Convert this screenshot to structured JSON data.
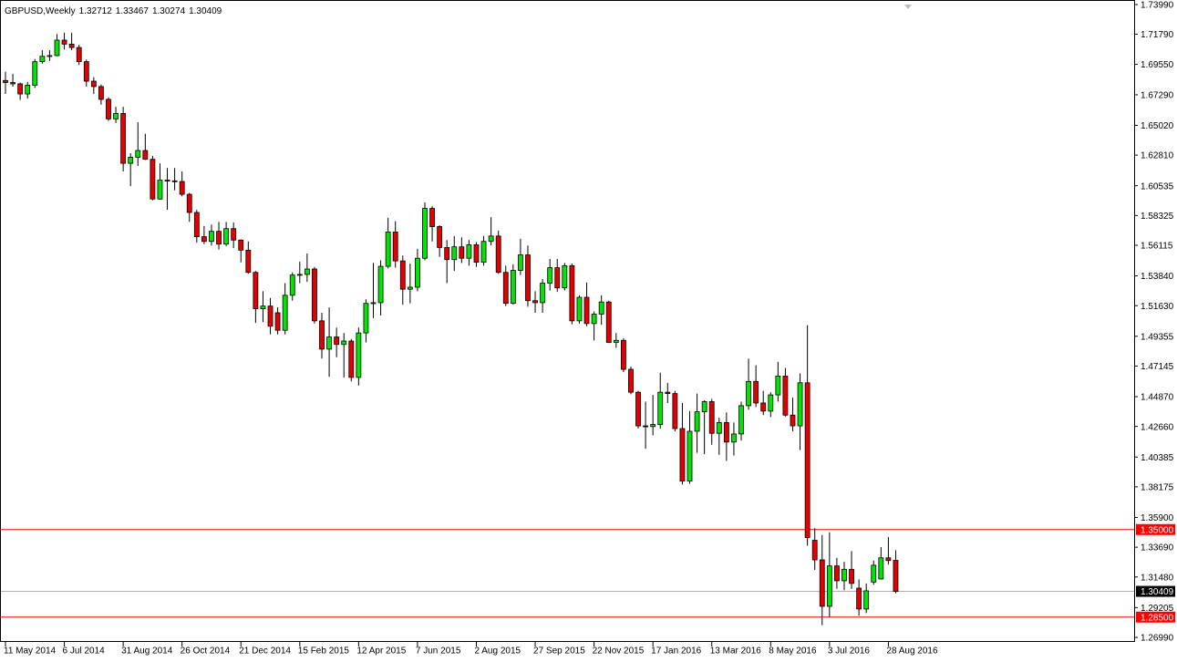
{
  "chart_data": {
    "type": "candlestick",
    "title": "GBPUSD,Weekly",
    "categories": [
      "11 May 2014",
      null,
      null,
      null,
      null,
      null,
      null,
      null,
      "6 Jul 2014",
      null,
      null,
      null,
      null,
      null,
      null,
      null,
      "31 Aug 2014",
      null,
      null,
      null,
      null,
      null,
      null,
      null,
      "26 Oct 2014",
      null,
      null,
      null,
      null,
      null,
      null,
      null,
      "21 Dec 2014",
      null,
      null,
      null,
      null,
      null,
      null,
      null,
      "15 Feb 2015",
      null,
      null,
      null,
      null,
      null,
      null,
      null,
      "12 Apr 2015",
      null,
      null,
      null,
      null,
      null,
      null,
      null,
      "7 Jun 2015",
      null,
      null,
      null,
      null,
      null,
      null,
      null,
      "2 Aug 2015",
      null,
      null,
      null,
      null,
      null,
      null,
      null,
      "27 Sep 2015",
      null,
      null,
      null,
      null,
      null,
      null,
      null,
      "22 Nov 2015",
      null,
      null,
      null,
      null,
      null,
      null,
      null,
      "17 Jan 2016",
      null,
      null,
      null,
      null,
      null,
      null,
      null,
      "13 Mar 2016",
      null,
      null,
      null,
      null,
      null,
      null,
      null,
      "8 May 2016",
      null,
      null,
      null,
      null,
      null,
      null,
      null,
      "3 Jul 2016",
      null,
      null,
      null,
      null,
      null,
      null,
      null,
      "28 Aug 2016",
      null
    ],
    "open": [
      1.6835,
      1.682,
      1.681,
      1.6735,
      1.68,
      1.6975,
      1.7015,
      1.702,
      1.7135,
      1.7105,
      1.708,
      1.6975,
      1.683,
      1.679,
      1.6695,
      1.655,
      1.659,
      1.622,
      1.6265,
      1.6315,
      1.625,
      1.5955,
      1.6095,
      1.609,
      1.6085,
      1.599,
      1.5855,
      1.5675,
      1.564,
      1.5715,
      1.562,
      1.5735,
      1.565,
      1.5575,
      1.541,
      1.514,
      1.516,
      1.511,
      1.498,
      1.524,
      1.539,
      1.5395,
      1.5435,
      1.505,
      1.484,
      1.493,
      1.4875,
      1.49,
      1.463,
      1.496,
      1.518,
      1.5185,
      1.5455,
      1.571,
      1.5495,
      1.5285,
      1.53,
      1.5515,
      1.5885,
      1.575,
      1.5595,
      1.5505,
      1.56,
      1.5515,
      1.5615,
      1.5485,
      1.564,
      1.568,
      1.541,
      1.518,
      1.5425,
      1.554,
      1.52,
      1.5185,
      1.533,
      1.5445,
      1.5295,
      1.546,
      1.505,
      1.5225,
      1.503,
      1.51,
      1.519,
      1.489,
      1.4905,
      1.469,
      1.452,
      1.427,
      1.4265,
      1.428,
      1.452,
      1.451,
      1.425,
      1.386,
      1.423,
      1.4375,
      1.445,
      1.4215,
      1.4295,
      1.415,
      1.421,
      1.442,
      1.46,
      1.444,
      1.438,
      1.45,
      1.464,
      1.435,
      1.427,
      1.459,
      1.342,
      1.3275,
      1.293,
      1.323,
      1.312,
      1.3205,
      1.3065,
      1.291,
      1.311,
      1.3133,
      1.329,
      1.32712
    ],
    "high": [
      1.69,
      1.6885,
      1.682,
      1.6825,
      1.6995,
      1.706,
      1.706,
      1.718,
      1.719,
      1.719,
      1.71,
      1.699,
      1.686,
      1.6805,
      1.671,
      1.664,
      1.664,
      1.6295,
      1.6525,
      1.644,
      1.6275,
      1.622,
      1.6185,
      1.6185,
      1.616,
      1.6,
      1.5875,
      1.5755,
      1.5765,
      1.5785,
      1.5785,
      1.578,
      1.5655,
      1.564,
      1.542,
      1.527,
      1.522,
      1.515,
      1.533,
      1.541,
      1.549,
      1.555,
      1.545,
      1.511,
      1.515,
      1.5,
      1.496,
      1.4915,
      1.5,
      1.521,
      1.548,
      1.55,
      1.5815,
      1.579,
      1.5535,
      1.5475,
      1.5585,
      1.593,
      1.59,
      1.576,
      1.565,
      1.568,
      1.567,
      1.565,
      1.5635,
      1.568,
      1.582,
      1.572,
      1.546,
      1.547,
      1.566,
      1.561,
      1.527,
      1.536,
      1.551,
      1.551,
      1.548,
      1.5475,
      1.524,
      1.5335,
      1.512,
      1.524,
      1.52,
      1.496,
      1.492,
      1.471,
      1.453,
      1.445,
      1.45,
      1.4665,
      1.459,
      1.453,
      1.444,
      1.438,
      1.451,
      1.446,
      1.447,
      1.433,
      1.437,
      1.4295,
      1.445,
      1.477,
      1.472,
      1.453,
      1.452,
      1.4745,
      1.47,
      1.448,
      1.466,
      1.5018,
      1.351,
      1.346,
      1.348,
      1.329,
      1.326,
      1.334,
      1.313,
      1.31,
      1.327,
      1.337,
      1.3445,
      1.33467
    ],
    "low": [
      1.6735,
      1.679,
      1.669,
      1.67,
      1.678,
      1.696,
      1.698,
      1.7015,
      1.7065,
      1.706,
      1.695,
      1.679,
      1.6735,
      1.6655,
      1.6535,
      1.652,
      1.616,
      1.605,
      1.62,
      1.6245,
      1.5945,
      1.595,
      1.5875,
      1.602,
      1.5975,
      1.5785,
      1.563,
      1.562,
      1.561,
      1.558,
      1.5605,
      1.559,
      1.5485,
      1.54,
      1.5035,
      1.504,
      1.495,
      1.495,
      1.495,
      1.52,
      1.533,
      1.534,
      1.503,
      1.477,
      1.4635,
      1.478,
      1.463,
      1.46,
      1.457,
      1.489,
      1.507,
      1.509,
      1.544,
      1.5445,
      1.517,
      1.518,
      1.527,
      1.55,
      1.564,
      1.5525,
      1.533,
      1.542,
      1.548,
      1.546,
      1.545,
      1.546,
      1.561,
      1.54,
      1.516,
      1.517,
      1.539,
      1.5155,
      1.511,
      1.511,
      1.5275,
      1.5265,
      1.5275,
      1.5025,
      1.503,
      1.501,
      1.4905,
      1.502,
      1.4885,
      1.485,
      1.467,
      1.4505,
      1.425,
      1.41,
      1.42,
      1.425,
      1.444,
      1.423,
      1.3835,
      1.384,
      1.407,
      1.406,
      1.413,
      1.4055,
      1.401,
      1.405,
      1.416,
      1.439,
      1.441,
      1.435,
      1.4335,
      1.445,
      1.434,
      1.423,
      1.409,
      1.338,
      1.32,
      1.279,
      1.285,
      1.306,
      1.305,
      1.306,
      1.286,
      1.288,
      1.309,
      1.313,
      1.324,
      1.30274
    ],
    "close": [
      1.682,
      1.681,
      1.6735,
      1.68,
      1.6975,
      1.7015,
      1.702,
      1.7135,
      1.7105,
      1.708,
      1.6975,
      1.683,
      1.679,
      1.6695,
      1.655,
      1.659,
      1.622,
      1.6265,
      1.6315,
      1.625,
      1.5955,
      1.6095,
      1.609,
      1.6085,
      1.599,
      1.5855,
      1.5675,
      1.564,
      1.5715,
      1.562,
      1.5735,
      1.565,
      1.5575,
      1.541,
      1.514,
      1.516,
      1.501,
      1.498,
      1.524,
      1.539,
      1.5395,
      1.5435,
      1.505,
      1.484,
      1.493,
      1.4875,
      1.49,
      1.463,
      1.496,
      1.518,
      1.5185,
      1.5455,
      1.571,
      1.5495,
      1.5285,
      1.53,
      1.5515,
      1.5885,
      1.575,
      1.5595,
      1.5505,
      1.56,
      1.5515,
      1.5615,
      1.5485,
      1.564,
      1.568,
      1.541,
      1.518,
      1.5425,
      1.554,
      1.52,
      1.5185,
      1.533,
      1.5445,
      1.5295,
      1.546,
      1.505,
      1.5225,
      1.503,
      1.51,
      1.519,
      1.489,
      1.4905,
      1.469,
      1.452,
      1.427,
      1.4265,
      1.428,
      1.452,
      1.451,
      1.425,
      1.386,
      1.423,
      1.4375,
      1.445,
      1.4215,
      1.4295,
      1.415,
      1.421,
      1.442,
      1.46,
      1.444,
      1.438,
      1.45,
      1.464,
      1.435,
      1.427,
      1.459,
      1.344,
      1.3275,
      1.293,
      1.323,
      1.312,
      1.3205,
      1.31,
      1.291,
      1.3045,
      1.3235,
      1.329,
      1.327,
      1.30409
    ],
    "up_color": "#00e600",
    "down_color": "#e50000",
    "ylim": [
      1.2679,
      1.7399
    ],
    "yticks": [
      {
        "value": 1.7399,
        "label": "1.73990"
      },
      {
        "value": 1.7179,
        "label": "1.71790"
      },
      {
        "value": 1.6955,
        "label": "1.69550"
      },
      {
        "value": 1.6729,
        "label": "1.67290"
      },
      {
        "value": 1.6502,
        "label": "1.65020"
      },
      {
        "value": 1.6281,
        "label": "1.62810"
      },
      {
        "value": 1.60535,
        "label": "1.60535"
      },
      {
        "value": 1.58325,
        "label": "1.58325"
      },
      {
        "value": 1.56115,
        "label": "1.56115"
      },
      {
        "value": 1.5384,
        "label": "1.53840"
      },
      {
        "value": 1.5163,
        "label": "1.51630"
      },
      {
        "value": 1.49355,
        "label": "1.49355"
      },
      {
        "value": 1.47145,
        "label": "1.47145"
      },
      {
        "value": 1.4487,
        "label": "1.44870"
      },
      {
        "value": 1.4266,
        "label": "1.42660"
      },
      {
        "value": 1.40385,
        "label": "1.40385"
      },
      {
        "value": 1.38175,
        "label": "1.38175"
      },
      {
        "value": 1.359,
        "label": "1.35900"
      },
      {
        "value": 1.3369,
        "label": "1.33690"
      },
      {
        "value": 1.3148,
        "label": "1.31480"
      },
      {
        "value": 1.29205,
        "label": "1.29205"
      },
      {
        "value": 1.2699,
        "label": "1.26990"
      }
    ],
    "hlines": [
      {
        "value": 1.35,
        "label": "1.35000",
        "color": "#ff0000"
      },
      {
        "value": 1.285,
        "label": "1.28500",
        "color": "#ff0000"
      }
    ],
    "grid": false
  }
}
